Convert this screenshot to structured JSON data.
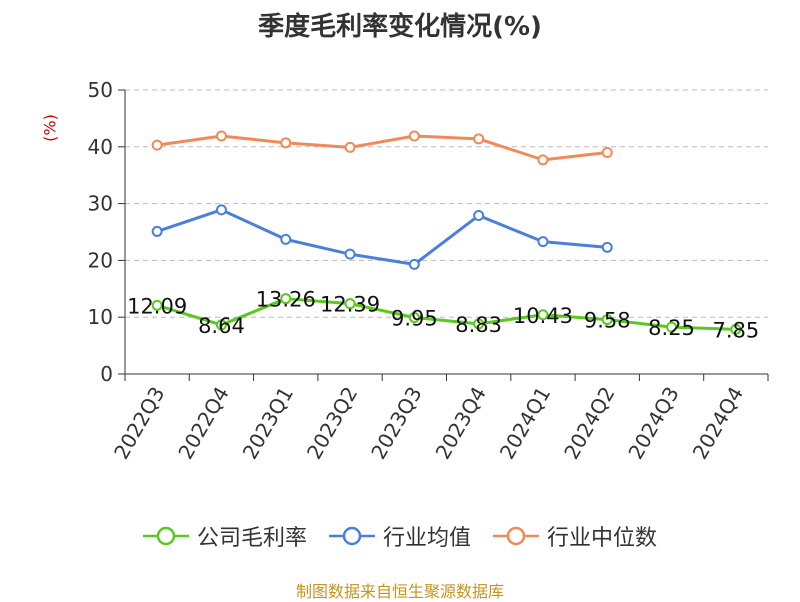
{
  "chart_data": {
    "type": "line",
    "title": "季度毛利率变化情况(%)",
    "ylabel": "(%)",
    "categories": [
      "2022Q3",
      "2022Q4",
      "2023Q1",
      "2023Q2",
      "2023Q3",
      "2023Q4",
      "2024Q1",
      "2024Q2",
      "2024Q3",
      "2024Q4"
    ],
    "ylim": [
      0,
      50
    ],
    "yticks": [
      0,
      10,
      20,
      30,
      40,
      50
    ],
    "grid": true,
    "legend_position": "bottom",
    "series": [
      {
        "name": "公司毛利率",
        "color": "#5ac81e",
        "values": [
          12.09,
          8.64,
          13.26,
          12.39,
          9.95,
          8.83,
          10.43,
          9.58,
          8.25,
          7.85
        ],
        "labels": [
          "12.09",
          "8.64",
          "13.26",
          "12.39",
          "9.95",
          "8.83",
          "10.43",
          "9.58",
          "8.25",
          "7.85"
        ]
      },
      {
        "name": "行业均值",
        "color": "#4a7fdc",
        "values": [
          25.1,
          28.9,
          23.7,
          21.1,
          19.3,
          27.9,
          23.3,
          22.3,
          null,
          null
        ]
      },
      {
        "name": "行业中位数",
        "color": "#f08a5a",
        "values": [
          40.3,
          41.9,
          40.7,
          39.9,
          41.9,
          41.4,
          37.7,
          39.0,
          null,
          null
        ]
      }
    ]
  },
  "source": "制图数据来自恒生聚源数据库"
}
